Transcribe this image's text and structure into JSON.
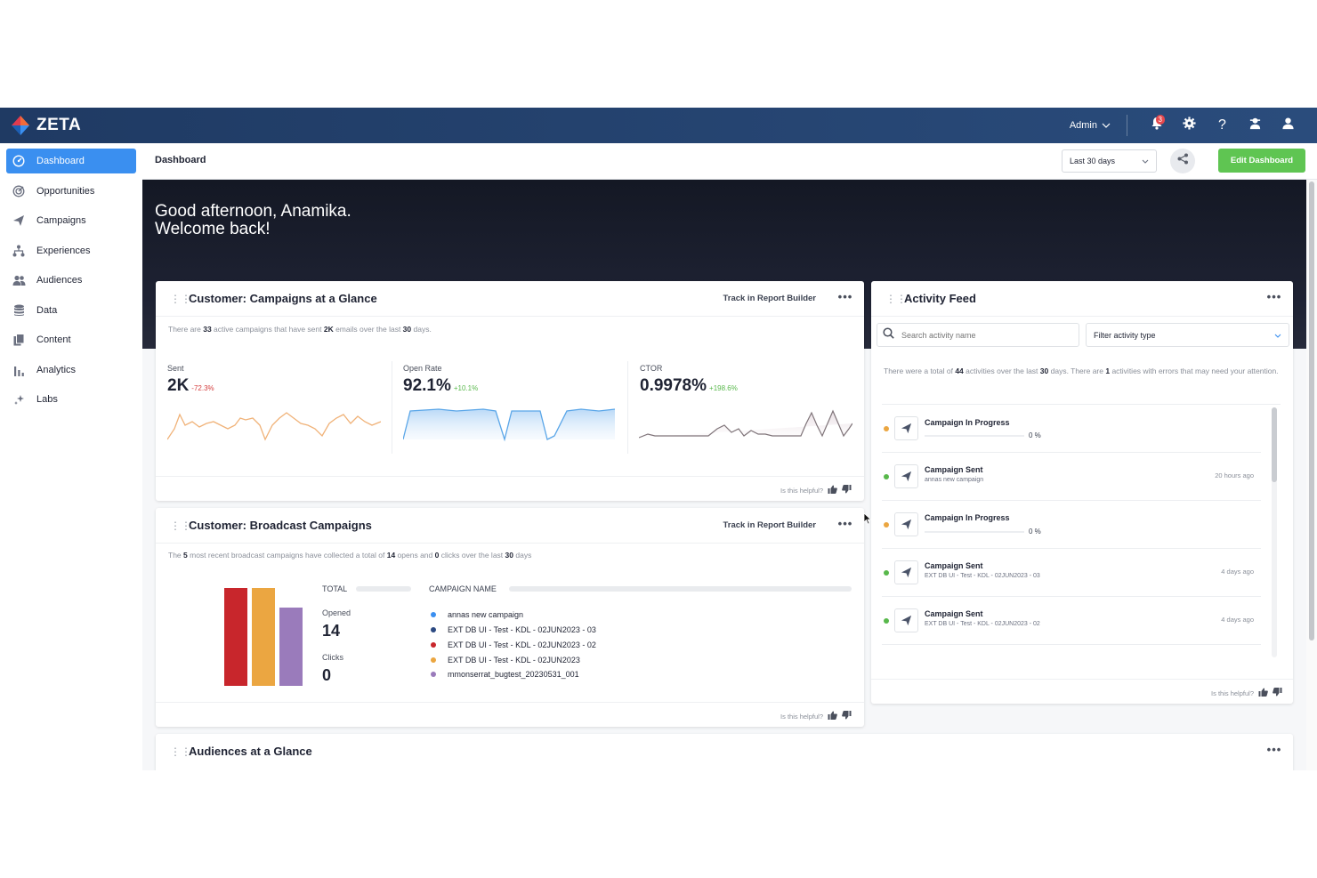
{
  "app": {
    "name": "ZETA"
  },
  "topbar": {
    "admin_label": "Admin",
    "notification_count": "3"
  },
  "sidebar": {
    "items": [
      {
        "label": "Dashboard",
        "icon": "dashboard-gauge-icon",
        "active": true
      },
      {
        "label": "Opportunities",
        "icon": "target-icon"
      },
      {
        "label": "Campaigns",
        "icon": "paper-plane-icon"
      },
      {
        "label": "Experiences",
        "icon": "hierarchy-icon"
      },
      {
        "label": "Audiences",
        "icon": "people-icon"
      },
      {
        "label": "Data",
        "icon": "database-icon"
      },
      {
        "label": "Content",
        "icon": "documents-icon"
      },
      {
        "label": "Analytics",
        "icon": "bar-chart-icon"
      },
      {
        "label": "Labs",
        "icon": "sparkles-icon"
      }
    ]
  },
  "header": {
    "title": "Dashboard",
    "date_range": "Last 30 days",
    "edit_label": "Edit Dashboard"
  },
  "hero": {
    "line1": "Good afternoon, Anamika.",
    "line2": "Welcome back!"
  },
  "campaigns_card": {
    "title": "Customer: Campaigns at a Glance",
    "track_label": "Track in Report Builder",
    "summary_pre": "There are ",
    "active_count": "33",
    "summary_mid": " active campaigns that have sent ",
    "sent_total": "2K",
    "summary_mid2": " emails over the last ",
    "days": "30",
    "summary_post": " days.",
    "metrics": [
      {
        "label": "Sent",
        "value": "2K",
        "delta": "-72.3%",
        "trend": "negative",
        "color": "#f0b278"
      },
      {
        "label": "Open Rate",
        "value": "92.1%",
        "delta": "+10.1%",
        "trend": "positive",
        "color": "#5aa6e8"
      },
      {
        "label": "CTOR",
        "value": "0.9978%",
        "delta": "+198.6%",
        "trend": "positive",
        "color": "#8a7f85"
      }
    ],
    "helpful_label": "Is this helpful?"
  },
  "broadcast_card": {
    "title": "Customer: Broadcast Campaigns",
    "track_label": "Track in Report Builder",
    "summary_pre": "The ",
    "recent_count": "5",
    "summary_mid": " most recent broadcast campaigns have collected a total of ",
    "opens": "14",
    "summary_mid2": " opens and ",
    "clicks": "0",
    "summary_mid3": " clicks over the last ",
    "days": "30",
    "summary_post": " days",
    "total_label": "TOTAL",
    "campaign_name_label": "CAMPAIGN NAME",
    "opened_label": "Opened",
    "opened_value": "14",
    "clicks_label": "Clicks",
    "clicks_value": "0",
    "bars": [
      {
        "color": "#c8262c",
        "level": 1.0
      },
      {
        "color": "#eba641",
        "level": 1.0
      },
      {
        "color": "#9a7bbb",
        "level": 0.8
      }
    ],
    "legend": [
      {
        "label": "annas new campaign",
        "color": "#3a8ff0"
      },
      {
        "label": "EXT DB UI - Test - KDL - 02JUN2023 - 03",
        "color": "#2c4a82"
      },
      {
        "label": "EXT DB UI - Test - KDL - 02JUN2023 - 02",
        "color": "#c8262c"
      },
      {
        "label": "EXT DB UI - Test - KDL - 02JUN2023",
        "color": "#eba641"
      },
      {
        "label": "mmonserrat_bugtest_20230531_001",
        "color": "#9a7bbb"
      }
    ],
    "helpful_label": "Is this helpful?"
  },
  "audiences_card": {
    "title": "Audiences at a Glance"
  },
  "activity_feed": {
    "title": "Activity Feed",
    "search_placeholder": "Search activity name",
    "filter_label": "Filter activity type",
    "summary_pre": "There were a total of ",
    "total": "44",
    "summary_mid": " activities over the last ",
    "days": "30",
    "summary_mid2": " days. There are ",
    "errors": "1",
    "summary_post": " activities with errors that may need your attention.",
    "items": [
      {
        "title": "Campaign In Progress",
        "subtitle": "",
        "time": "",
        "progress": "0 %",
        "status_color": "#eba641"
      },
      {
        "title": "Campaign Sent",
        "subtitle": "annas new campaign",
        "time": "20 hours ago",
        "progress": "",
        "status_color": "#58b84b"
      },
      {
        "title": "Campaign In Progress",
        "subtitle": "",
        "time": "",
        "progress": "0 %",
        "status_color": "#eba641"
      },
      {
        "title": "Campaign Sent",
        "subtitle": "EXT DB UI - Test - KDL - 02JUN2023 - 03",
        "time": "4 days ago",
        "progress": "",
        "status_color": "#58b84b"
      },
      {
        "title": "Campaign Sent",
        "subtitle": "EXT DB UI - Test - KDL - 02JUN2023 - 02",
        "time": "4 days ago",
        "progress": "",
        "status_color": "#58b84b"
      }
    ],
    "helpful_label": "Is this helpful?"
  }
}
